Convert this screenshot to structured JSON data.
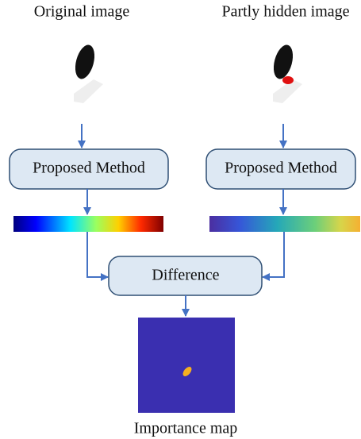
{
  "images": [
    {
      "caption": "Original image"
    },
    {
      "caption": "Partly hidden image"
    }
  ],
  "method_boxes": [
    "Proposed Method",
    "Proposed Method"
  ],
  "difference_box": "Difference",
  "output": {
    "caption": "Importance map"
  }
}
